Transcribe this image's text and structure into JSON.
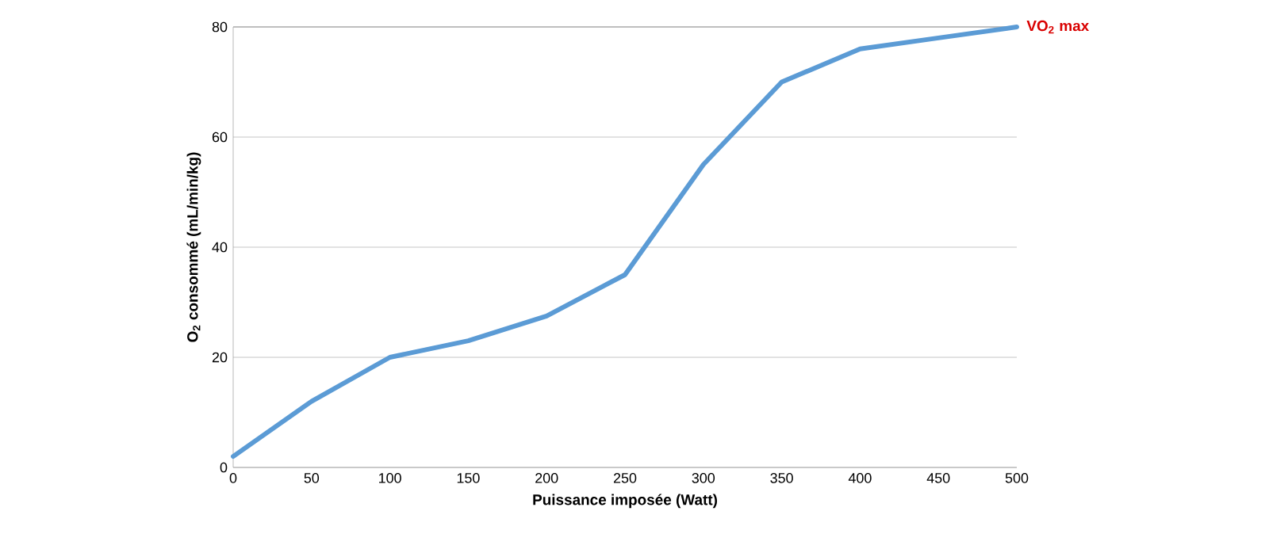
{
  "chart_data": {
    "type": "line",
    "xlabel": "Puissance imposée (Watt)",
    "ylabel": "O$_{2}$ consommé (mL/min/kg)",
    "x": [
      0,
      50,
      100,
      150,
      200,
      250,
      300,
      350,
      400,
      450,
      500
    ],
    "series": [
      {
        "color": "#5b9bd5",
        "values": [
          2,
          12,
          20,
          23,
          27.5,
          35,
          55,
          70,
          76,
          78,
          80
        ]
      }
    ],
    "xlim": [
      0,
      500
    ],
    "xticks": [
      0,
      50,
      100,
      150,
      200,
      250,
      300,
      350,
      400,
      450,
      500
    ],
    "ylim": [
      0,
      80
    ],
    "yticks": [
      0,
      20,
      40,
      60,
      80
    ],
    "grid": "y",
    "marker": "none",
    "line_style": "solid",
    "annotations": [
      {
        "text": "VO$_{2}$ max",
        "x": 500,
        "y": 80
      }
    ]
  }
}
